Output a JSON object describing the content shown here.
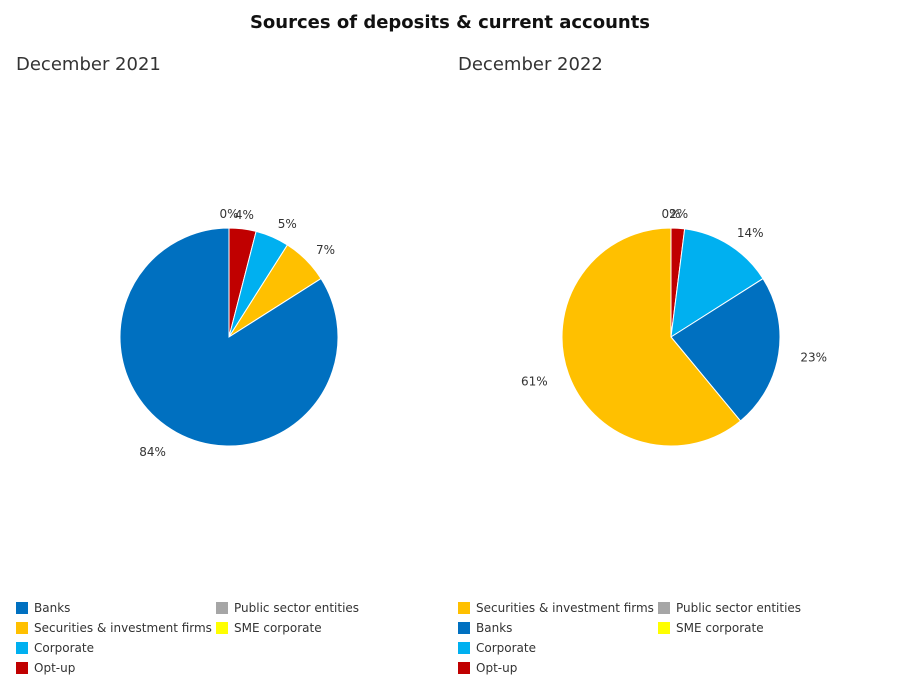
{
  "chart_data": {
    "type": "pie",
    "title": "Sources of deposits & current accounts",
    "charts": [
      {
        "subtitle": "December 2021",
        "slices": [
          {
            "name": "Public sector entities",
            "value": 0,
            "label": "0%",
            "color": "#a6a6a6"
          },
          {
            "name": "Opt-up",
            "value": 4,
            "label": "4%",
            "color": "#c00000"
          },
          {
            "name": "Corporate",
            "value": 5,
            "label": "5%",
            "color": "#00b0f0"
          },
          {
            "name": "Securities & investment firms",
            "value": 7,
            "label": "7%",
            "color": "#ffc000"
          },
          {
            "name": "Banks",
            "value": 84,
            "label": "84%",
            "color": "#0070c0"
          }
        ],
        "legend": [
          {
            "name": "Banks",
            "color": "#0070c0"
          },
          {
            "name": "Public sector entities",
            "color": "#a6a6a6"
          },
          {
            "name": "Securities & investment firms",
            "color": "#ffc000"
          },
          {
            "name": "SME corporate",
            "color": "#ffff00"
          },
          {
            "name": "Corporate",
            "color": "#00b0f0"
          },
          {
            "name": "",
            "color": ""
          },
          {
            "name": "Opt-up",
            "color": "#c00000"
          }
        ]
      },
      {
        "subtitle": "December 2022",
        "slices": [
          {
            "name": "Public sector entities",
            "value": 0,
            "label": "0%",
            "color": "#a6a6a6"
          },
          {
            "name": "Opt-up",
            "value": 2,
            "label": "2%",
            "color": "#c00000"
          },
          {
            "name": "Corporate",
            "value": 14,
            "label": "14%",
            "color": "#00b0f0"
          },
          {
            "name": "Banks",
            "value": 23,
            "label": "23%",
            "color": "#0070c0"
          },
          {
            "name": "Securities & investment firms",
            "value": 61,
            "label": "61%",
            "color": "#ffc000"
          }
        ],
        "legend": [
          {
            "name": "Securities & investment firms",
            "color": "#ffc000"
          },
          {
            "name": "Public sector entities",
            "color": "#a6a6a6"
          },
          {
            "name": "Banks",
            "color": "#0070c0"
          },
          {
            "name": "SME corporate",
            "color": "#ffff00"
          },
          {
            "name": "Corporate",
            "color": "#00b0f0"
          },
          {
            "name": "",
            "color": ""
          },
          {
            "name": "Opt-up",
            "color": "#c00000"
          }
        ]
      }
    ]
  }
}
